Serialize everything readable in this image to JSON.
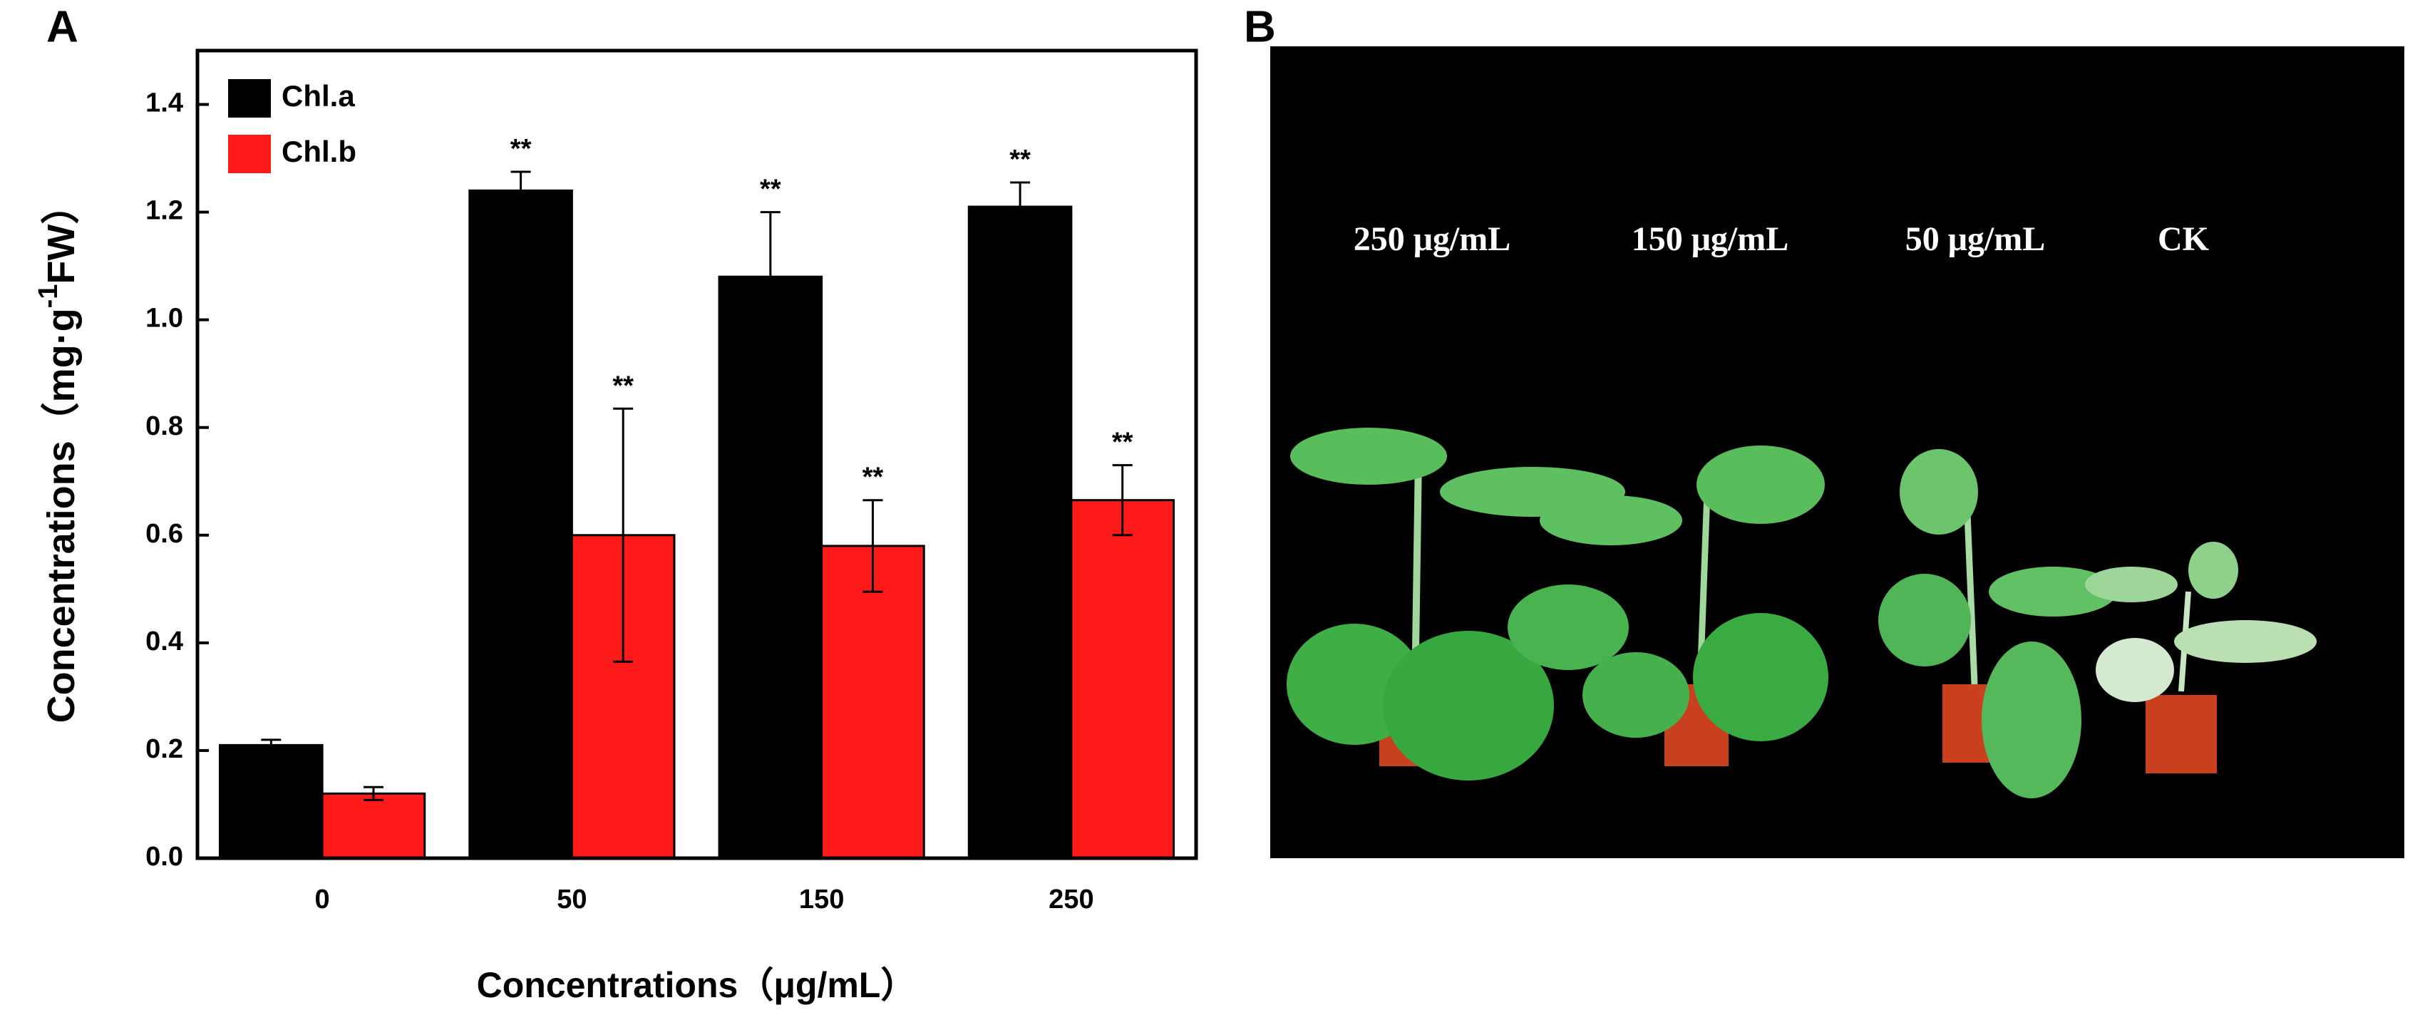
{
  "chart_data": {
    "type": "bar",
    "panel_label": "A",
    "categories": [
      "0",
      "50",
      "150",
      "250"
    ],
    "series": [
      {
        "name": "Chl.a",
        "color": "#000000",
        "values": [
          0.21,
          1.24,
          1.08,
          1.21
        ],
        "errors": [
          0.01,
          0.035,
          0.12,
          0.045
        ],
        "significance": [
          null,
          "**",
          "**",
          "**"
        ]
      },
      {
        "name": "Chl.b",
        "color": "#ff1a1a",
        "values": [
          0.12,
          0.6,
          0.58,
          0.665
        ],
        "errors": [
          0.012,
          0.235,
          0.085,
          0.065
        ],
        "significance": [
          null,
          "**",
          "**",
          "**"
        ]
      }
    ],
    "ylim": [
      0,
      1.5
    ],
    "yticks": [
      {
        "value": 0,
        "label": "0.0"
      },
      0.2,
      0.4,
      0.6,
      0.8,
      {
        "value": 1,
        "label": "1.0"
      },
      1.2,
      1.4
    ],
    "ylabel": [
      "Concentrations（mg·g",
      "-1",
      "FW）"
    ],
    "xlabel": "Concentrations（μg/mL）",
    "legend": "upper left"
  },
  "panel_b": {
    "panel_label": "B",
    "photo_labels": [
      "250 μg/mL",
      "150 μg/mL",
      "50 μg/mL",
      "CK"
    ]
  }
}
